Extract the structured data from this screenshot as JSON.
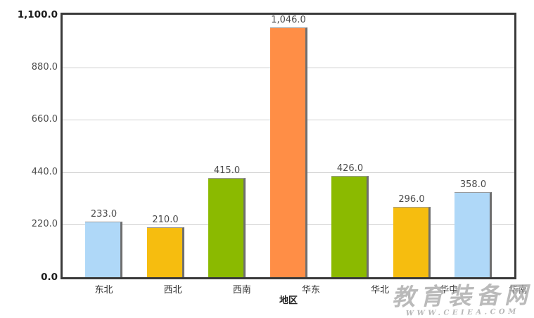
{
  "chart_data": {
    "type": "bar",
    "title": "",
    "xlabel": "地区",
    "ylabel": "",
    "ylim": [
      0,
      1100
    ],
    "yticks": [
      0,
      220,
      440,
      660,
      880,
      1100
    ],
    "ytick_labels": [
      "0.0",
      "220.0",
      "440.0",
      "660.0",
      "880.0",
      "1,100.0"
    ],
    "categories": [
      "东北",
      "西北",
      "西南",
      "华东",
      "华北",
      "华中",
      "华南"
    ],
    "values": [
      233,
      210,
      415,
      1046,
      426,
      296,
      358
    ],
    "value_labels": [
      "233.0",
      "210.0",
      "415.0",
      "1,046.0",
      "426.0",
      "296.0",
      "358.0"
    ],
    "bar_colors": [
      "#AFD8F8",
      "#F6BD0F",
      "#8BBA00",
      "#FF8E46",
      "#8BBA00",
      "#F6BD0F",
      "#AFD8F8"
    ],
    "grid": true,
    "legend": false
  },
  "colors": {
    "background": "#ffffff",
    "axis_border": "#3a3a3a",
    "gridline": "#cfcfcf",
    "tick_label": "#4d4d4d",
    "value_label": "#4a4a4a",
    "bar_shadow": "#6e6e6e",
    "watermark": "#a3a3a3"
  },
  "watermark": {
    "text": "教育装备网",
    "url": "WWW.CEIEA.COM"
  }
}
